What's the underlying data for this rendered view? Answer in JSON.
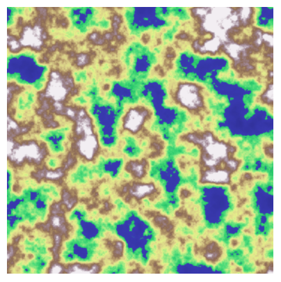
{
  "map": {
    "type": "procedural-terrain-heightmap",
    "colormap": "terrain",
    "palette": {
      "water_deep": "#31319a",
      "water": "#3a3ab2",
      "shore_green": "#23c46a",
      "lowland_green": "#4fdc7a",
      "meadow": "#9eea84",
      "plains_yellow": "#e6f08c",
      "sand": "#d8cc88",
      "hill_tan": "#b59a6a",
      "mountain_brown": "#8c6a55",
      "peak_mauve": "#a08896",
      "snow": "#f2eef2"
    },
    "seed": 7
  }
}
